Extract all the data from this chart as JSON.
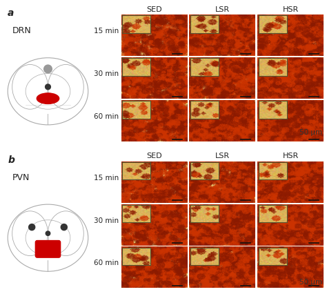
{
  "title": "",
  "panel_a_label": "a",
  "panel_b_label": "b",
  "region_a": "DRN",
  "region_b": "PVN",
  "col_labels": [
    "SED",
    "LSR",
    "HSR"
  ],
  "row_labels": [
    "15 min",
    "30 min",
    "60 min"
  ],
  "scale_bar_text": "50 μm",
  "bg_color": "#ffffff",
  "text_color": "#333333",
  "img_bg_color": "#e8c870",
  "img_spot_color_dark": "#8b1a00",
  "img_spot_color_mid": "#cc3300",
  "brain_line_color": "#aaaaaa",
  "brain_highlight_a": "#cc0000",
  "brain_highlight_b": "#cc0000",
  "brain_dot_a": "#333333",
  "brain_dot_gray": "#999999",
  "inset_border_color": "#555533",
  "scale_bar_color": "#111111",
  "font_size_label": 9,
  "font_size_region": 9,
  "font_size_col": 8,
  "font_size_row": 7.5,
  "font_size_scale": 7.5
}
